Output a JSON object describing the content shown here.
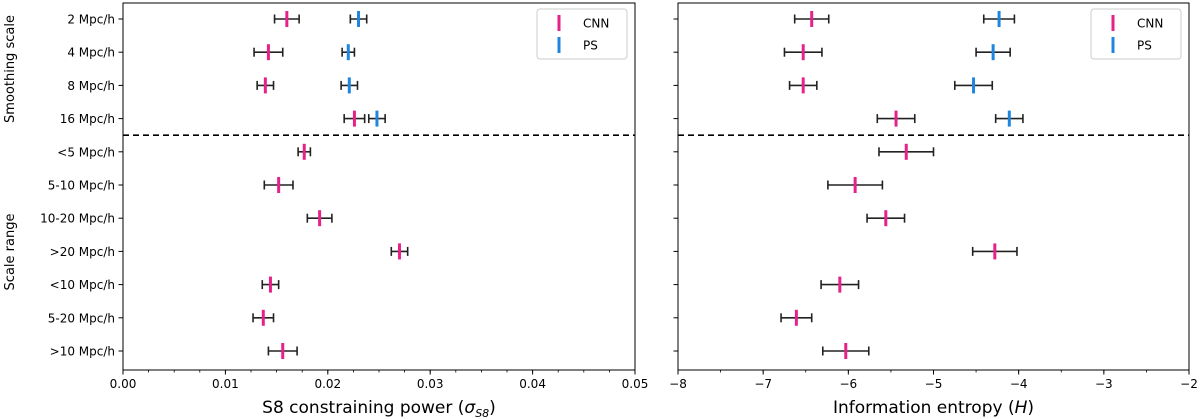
{
  "colors": {
    "CNN": "#e6218a",
    "PS": "#1f85de",
    "errorbar": "#222222",
    "frame": "#000000"
  },
  "rows": [
    "2 Mpc/h",
    "4 Mpc/h",
    "8 Mpc/h",
    "16 Mpc/h",
    "<5 Mpc/h",
    "5-10 Mpc/h",
    "10-20 Mpc/h",
    ">20 Mpc/h",
    "<10 Mpc/h",
    "5-20 Mpc/h",
    ">10 Mpc/h"
  ],
  "group_labels": {
    "top": "Smoothing scale",
    "bottom": "Scale range"
  },
  "divider_after_row": 3,
  "legend": {
    "position": "top-right",
    "entries": [
      "CNN",
      "PS"
    ]
  },
  "chart_data": [
    {
      "type": "errorbar",
      "xlabel_pre": "S8 constraining power (",
      "xlabel_sym": "σ",
      "xlabel_sub": "S8",
      "xlabel_post": ")",
      "xlim": [
        0.0,
        0.05
      ],
      "xticks": [
        0.0,
        0.01,
        0.02,
        0.03,
        0.04,
        0.05
      ],
      "xtick_labels": [
        "0.00",
        "0.01",
        "0.02",
        "0.03",
        "0.04",
        "0.05"
      ],
      "minor_step": 0.0025,
      "series": [
        {
          "name": "CNN",
          "values": [
            0.016,
            0.0142,
            0.0139,
            0.0226,
            0.0177,
            0.0152,
            0.0192,
            0.027,
            0.0144,
            0.0137,
            0.0156
          ],
          "errors": [
            0.0012,
            0.0014,
            0.0008,
            0.001,
            0.0006,
            0.0014,
            0.0012,
            0.0008,
            0.0008,
            0.001,
            0.0014
          ]
        },
        {
          "name": "PS",
          "values": [
            0.023,
            0.022,
            0.0221,
            0.0248,
            null,
            null,
            null,
            null,
            null,
            null,
            null
          ],
          "errors": [
            0.0008,
            0.0006,
            0.0008,
            0.0008,
            null,
            null,
            null,
            null,
            null,
            null,
            null
          ]
        }
      ]
    },
    {
      "type": "errorbar",
      "xlabel_pre": "Information entropy (",
      "xlabel_sym": "H",
      "xlabel_sub": "",
      "xlabel_post": ")",
      "xlim": [
        -8,
        -2
      ],
      "xticks": [
        -8,
        -7,
        -6,
        -5,
        -4,
        -3,
        -2
      ],
      "xtick_labels": [
        "−8",
        "−7",
        "−6",
        "−5",
        "−4",
        "−3",
        "−2"
      ],
      "minor_step": 0.5,
      "series": [
        {
          "name": "CNN",
          "values": [
            -6.43,
            -6.53,
            -6.53,
            -5.44,
            -5.32,
            -5.92,
            -5.56,
            -4.28,
            -6.1,
            -6.61,
            -6.03
          ],
          "errors": [
            0.2,
            0.22,
            0.16,
            0.22,
            0.32,
            0.32,
            0.22,
            0.26,
            0.22,
            0.18,
            0.27
          ]
        },
        {
          "name": "PS",
          "values": [
            -4.23,
            -4.3,
            -4.53,
            -4.11,
            null,
            null,
            null,
            null,
            null,
            null,
            null
          ],
          "errors": [
            0.18,
            0.2,
            0.22,
            0.16,
            null,
            null,
            null,
            null,
            null,
            null,
            null
          ]
        }
      ]
    }
  ]
}
